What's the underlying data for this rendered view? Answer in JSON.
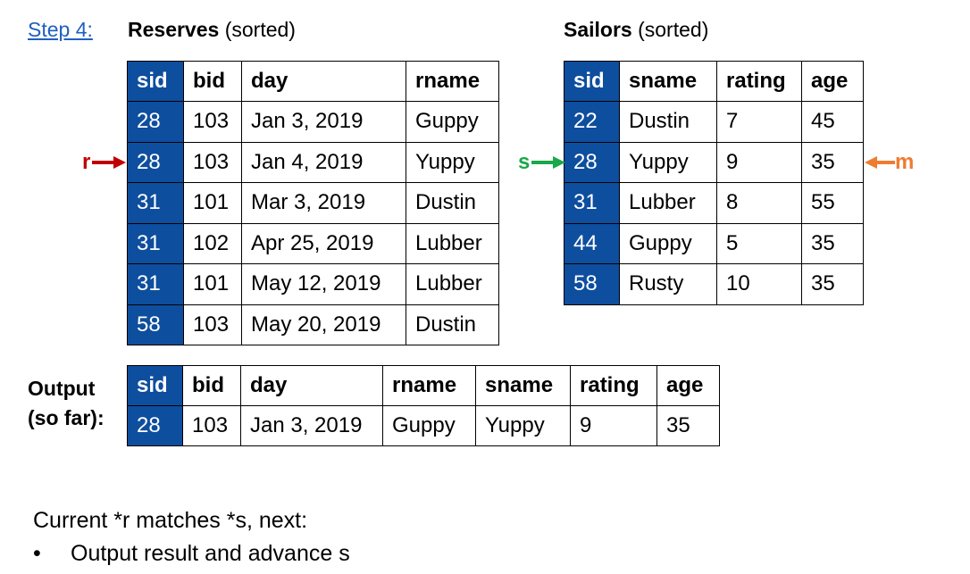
{
  "step_label": "Step 4:",
  "reserves": {
    "title": "Reserves",
    "subtitle": "(sorted)",
    "columns": [
      "sid",
      "bid",
      "day",
      "rname"
    ],
    "rows": [
      [
        "28",
        "103",
        "Jan 3, 2019",
        "Guppy"
      ],
      [
        "28",
        "103",
        "Jan 4, 2019",
        "Yuppy"
      ],
      [
        "31",
        "101",
        "Mar 3, 2019",
        "Dustin"
      ],
      [
        "31",
        "102",
        "Apr 25, 2019",
        "Lubber"
      ],
      [
        "31",
        "101",
        "May 12, 2019",
        "Lubber"
      ],
      [
        "58",
        "103",
        "May 20, 2019",
        "Dustin"
      ]
    ]
  },
  "sailors": {
    "title": "Sailors",
    "subtitle": "(sorted)",
    "columns": [
      "sid",
      "sname",
      "rating",
      "age"
    ],
    "rows": [
      [
        "22",
        "Dustin",
        "7",
        "45"
      ],
      [
        "28",
        "Yuppy",
        "9",
        "35"
      ],
      [
        "31",
        "Lubber",
        "8",
        "55"
      ],
      [
        "44",
        "Guppy",
        "5",
        "35"
      ],
      [
        "58",
        "Rusty",
        "10",
        "35"
      ]
    ]
  },
  "pointers": {
    "r": {
      "label": "r",
      "color": "#c00000",
      "row": 1
    },
    "s": {
      "label": "s",
      "color": "#1aa84a",
      "row": 1
    },
    "m": {
      "label": "m",
      "color": "#ed7d31",
      "row": 1
    }
  },
  "output": {
    "label_line1": "Output",
    "label_line2": "(so far):",
    "columns": [
      "sid",
      "bid",
      "day",
      "rname",
      "sname",
      "rating",
      "age"
    ],
    "rows": [
      [
        "28",
        "103",
        "Jan 3, 2019",
        "Guppy",
        "Yuppy",
        "9",
        "35"
      ]
    ]
  },
  "footer": {
    "line1": "Current *r matches *s, next:",
    "bullet": "Output result and advance s"
  },
  "key_color": "#0e4e9e"
}
